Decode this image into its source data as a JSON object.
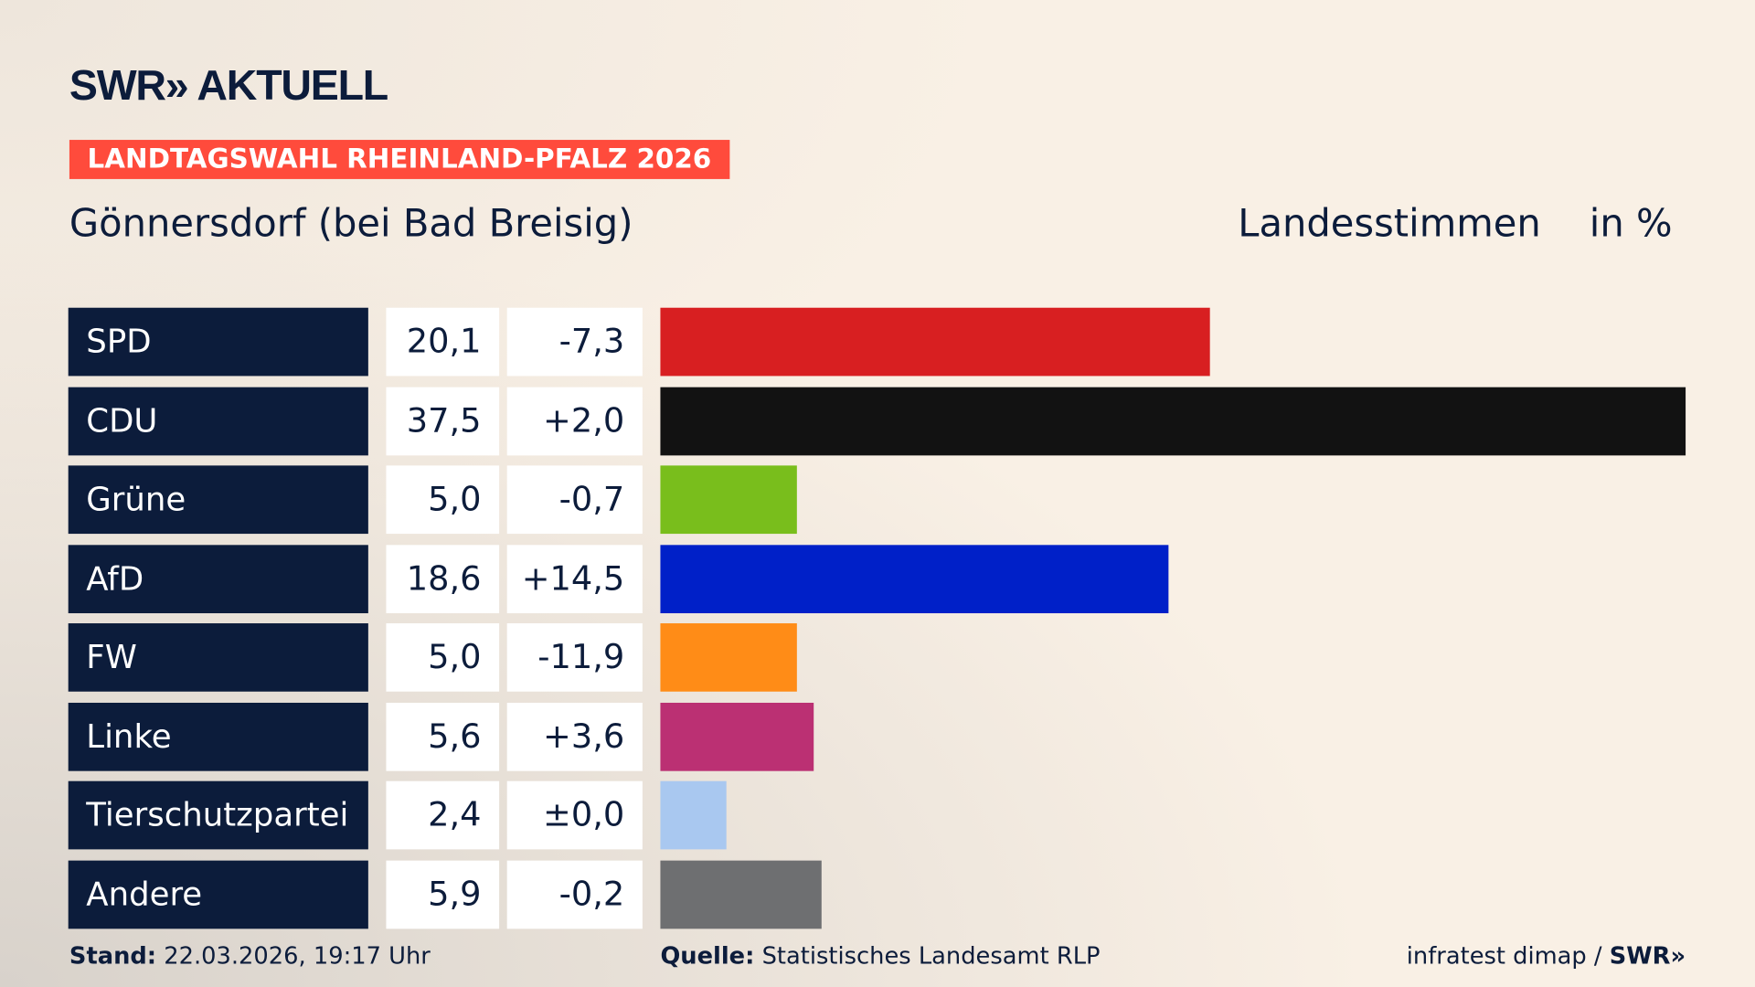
{
  "header": {
    "logo": "SWR» AKTUELL",
    "banner": "LANDTAGSWAHL RHEINLAND-PFALZ 2026",
    "place": "Gönnersdorf (bei Bad Breisig)",
    "column_label": "Landesstimmen",
    "unit_label": "in %"
  },
  "chart_data": {
    "type": "bar",
    "orientation": "horizontal",
    "title": "Gönnersdorf (bei Bad Breisig)",
    "categories": [
      "SPD",
      "CDU",
      "Grüne",
      "AfD",
      "FW",
      "Linke",
      "Tierschutzpartei",
      "Andere"
    ],
    "values": [
      20.1,
      37.5,
      5.0,
      18.6,
      5.0,
      5.6,
      2.4,
      5.9
    ],
    "value_labels": [
      "20,1",
      "37,5",
      "5,0",
      "18,6",
      "5,0",
      "5,6",
      "2,4",
      "5,9"
    ],
    "diff_labels": [
      "-7,3",
      "+2,0",
      "-0,7",
      "+14,5",
      "-11,9",
      "+3,6",
      "±0,0",
      "-0,2"
    ],
    "colors": [
      "#d81f21",
      "#121212",
      "#79be1c",
      "#0020c8",
      "#ff8c17",
      "#bb3073",
      "#a9c8f0",
      "#6e6f71"
    ],
    "xlim": [
      0,
      37.5
    ],
    "grid": false
  },
  "footer": {
    "stand_label": "Stand:",
    "stand_value": "22.03.2026, 19:17 Uhr",
    "source_label": "Quelle:",
    "source_value": "Statistisches Landesamt RLP",
    "credit": "infratest dimap / ",
    "credit_logo": "SWR»"
  }
}
